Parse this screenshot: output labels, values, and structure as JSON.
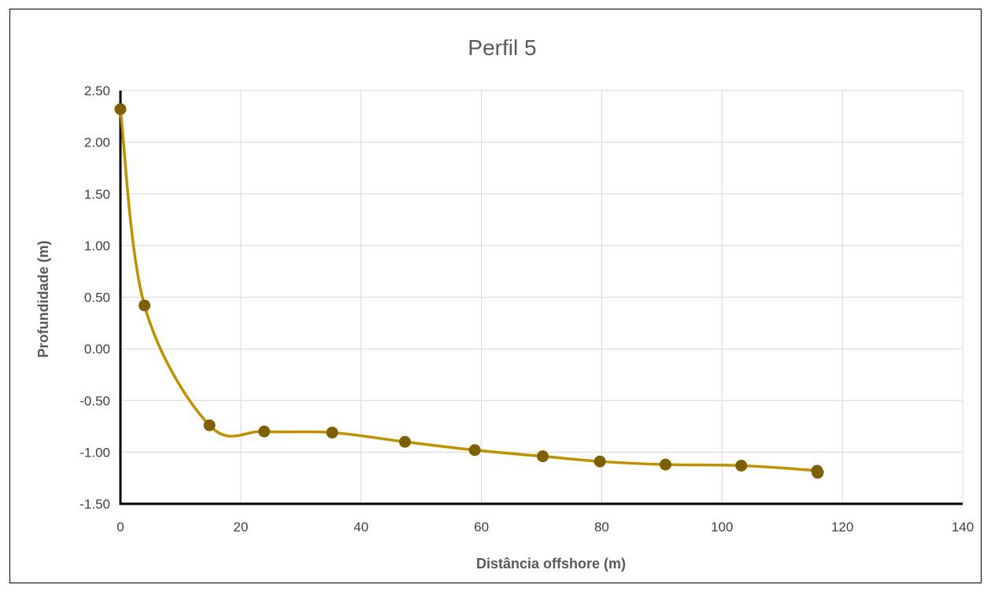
{
  "chart_data": {
    "type": "scatter",
    "title": "Perfil 5",
    "xlabel": "Distância offshore (m)",
    "ylabel": "Profundidade (m)",
    "xlim": [
      0,
      140
    ],
    "ylim": [
      -1.5,
      2.5
    ],
    "x_ticks": [
      0,
      20,
      40,
      60,
      80,
      100,
      120,
      140
    ],
    "y_ticks": [
      2.5,
      2.0,
      1.5,
      1.0,
      0.5,
      0.0,
      -0.5,
      -1.0,
      -1.5
    ],
    "x_tick_labels": [
      "0",
      "20",
      "40",
      "60",
      "80",
      "100",
      "120",
      "140"
    ],
    "y_tick_labels": [
      "2.50",
      "2.00",
      "1.50",
      "1.00",
      "0.50",
      "0.00",
      "-0.50",
      "-1.00",
      "-1.50"
    ],
    "grid": true,
    "smooth_line": true,
    "series": [
      {
        "color": "#BF9000",
        "marker_color": "#7F6000",
        "points": [
          {
            "x": 0,
            "y": 2.32
          },
          {
            "x": 4,
            "y": 0.42
          },
          {
            "x": 14.8,
            "y": -0.74
          },
          {
            "x": 23.9,
            "y": -0.8
          },
          {
            "x": 35.2,
            "y": -0.81
          },
          {
            "x": 47.3,
            "y": -0.9
          },
          {
            "x": 58.9,
            "y": -0.98
          },
          {
            "x": 70.2,
            "y": -1.04
          },
          {
            "x": 79.7,
            "y": -1.09
          },
          {
            "x": 90.6,
            "y": -1.12
          },
          {
            "x": 103.2,
            "y": -1.13
          },
          {
            "x": 115.8,
            "y": -1.18
          },
          {
            "x": 115.9,
            "y": -1.2
          }
        ]
      }
    ]
  }
}
